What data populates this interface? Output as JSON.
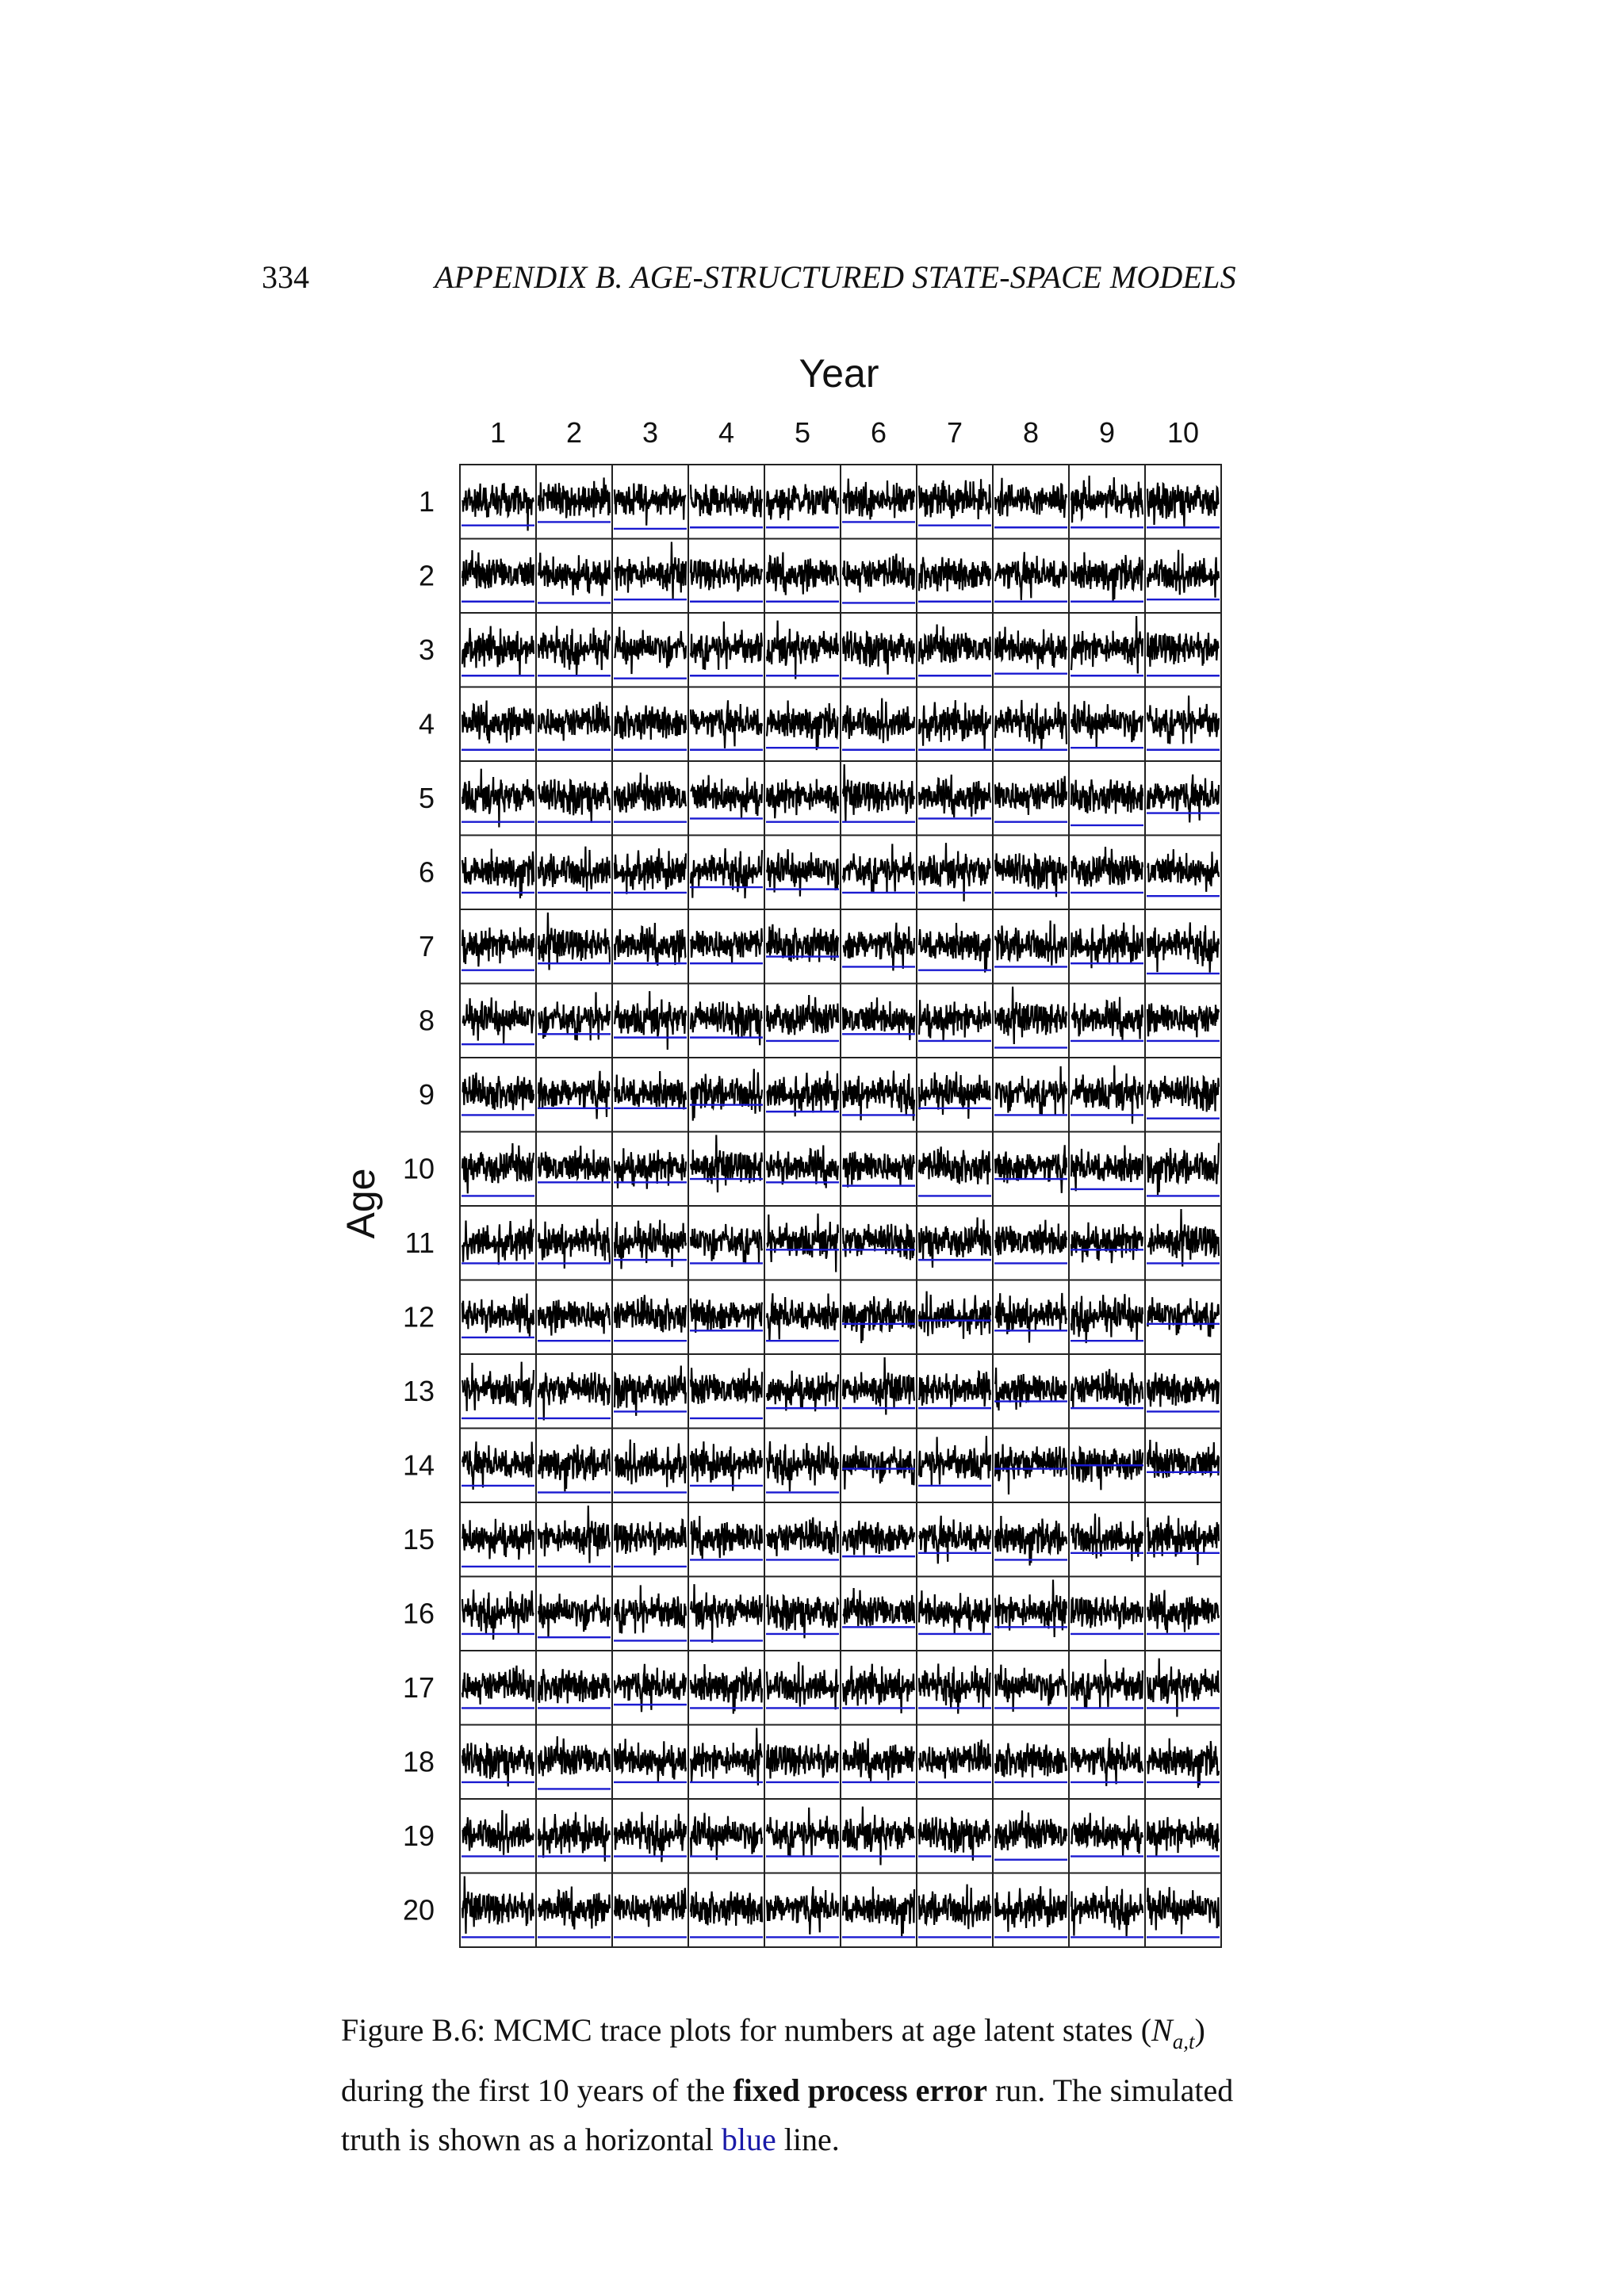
{
  "header": {
    "page_number": "334",
    "running_title": "APPENDIX B.  AGE-STRUCTURED STATE-SPACE MODELS"
  },
  "chart_data": {
    "type": "line",
    "title": "",
    "xlabel": "Year",
    "ylabel": "Age",
    "columns": [
      "1",
      "2",
      "3",
      "4",
      "5",
      "6",
      "7",
      "8",
      "9",
      "10"
    ],
    "rows": [
      "1",
      "2",
      "3",
      "4",
      "5",
      "6",
      "7",
      "8",
      "9",
      "10",
      "11",
      "12",
      "13",
      "14",
      "15",
      "16",
      "17",
      "18",
      "19",
      "20"
    ],
    "grid": true,
    "trace_color": "#000000",
    "truth_color": "#1a1ad0",
    "truth_level": [
      [
        0.15,
        0.2,
        0.1,
        0.12,
        0.12,
        0.2,
        0.15,
        0.12,
        0.12,
        0.12
      ],
      [
        0.12,
        0.1,
        0.15,
        0.12,
        0.12,
        0.1,
        0.12,
        0.12,
        0.12,
        0.15
      ],
      [
        0.12,
        0.12,
        0.08,
        0.12,
        0.12,
        0.08,
        0.12,
        0.15,
        0.12,
        0.12
      ],
      [
        0.12,
        0.12,
        0.12,
        0.12,
        0.15,
        0.12,
        0.12,
        0.12,
        0.15,
        0.12
      ],
      [
        0.15,
        0.15,
        0.15,
        0.2,
        0.15,
        0.15,
        0.2,
        0.15,
        0.1,
        0.28
      ],
      [
        0.2,
        0.2,
        0.2,
        0.28,
        0.25,
        0.2,
        0.2,
        0.2,
        0.2,
        0.15
      ],
      [
        0.15,
        0.25,
        0.25,
        0.25,
        0.35,
        0.2,
        0.15,
        0.2,
        0.25,
        0.1
      ],
      [
        0.15,
        0.3,
        0.25,
        0.25,
        0.2,
        0.3,
        0.2,
        0.1,
        0.2,
        0.2
      ],
      [
        0.2,
        0.3,
        0.3,
        0.35,
        0.25,
        0.2,
        0.3,
        0.2,
        0.2,
        0.15
      ],
      [
        0.1,
        0.3,
        0.3,
        0.35,
        0.3,
        0.25,
        0.1,
        0.35,
        0.2,
        0.1
      ],
      [
        0.2,
        0.2,
        0.25,
        0.2,
        0.4,
        0.4,
        0.25,
        0.2,
        0.4,
        0.2
      ],
      [
        0.2,
        0.15,
        0.15,
        0.3,
        0.15,
        0.4,
        0.45,
        0.3,
        0.15,
        0.4
      ],
      [
        0.1,
        0.1,
        0.2,
        0.1,
        0.25,
        0.25,
        0.25,
        0.35,
        0.25,
        0.2
      ],
      [
        0.2,
        0.1,
        0.1,
        0.2,
        0.1,
        0.45,
        0.2,
        0.45,
        0.5,
        0.4
      ],
      [
        0.1,
        0.1,
        0.1,
        0.2,
        0.2,
        0.25,
        0.3,
        0.2,
        0.3,
        0.3
      ],
      [
        0.2,
        0.15,
        0.1,
        0.1,
        0.2,
        0.3,
        0.2,
        0.3,
        0.2,
        0.2
      ],
      [
        0.2,
        0.2,
        0.25,
        0.2,
        0.2,
        0.2,
        0.2,
        0.2,
        0.2,
        0.2
      ],
      [
        0.2,
        0.1,
        0.2,
        0.2,
        0.2,
        0.2,
        0.2,
        0.2,
        0.2,
        0.2
      ],
      [
        0.2,
        0.2,
        0.2,
        0.2,
        0.2,
        0.2,
        0.2,
        0.15,
        0.2,
        0.2
      ],
      [
        0.1,
        0.1,
        0.1,
        0.1,
        0.1,
        0.1,
        0.1,
        0.1,
        0.1,
        0.1
      ]
    ]
  },
  "caption": {
    "label": "Figure B.6:",
    "part1": " MCMC trace plots for numbers at age latent states (",
    "math_base": "N",
    "math_sub": "a,t",
    "part2": ") during the first 10 years of the ",
    "bold": "fixed process error",
    "part3": " run. The simulated truth is shown as a horizontal ",
    "blue_word": "blue",
    "part4": " line."
  }
}
